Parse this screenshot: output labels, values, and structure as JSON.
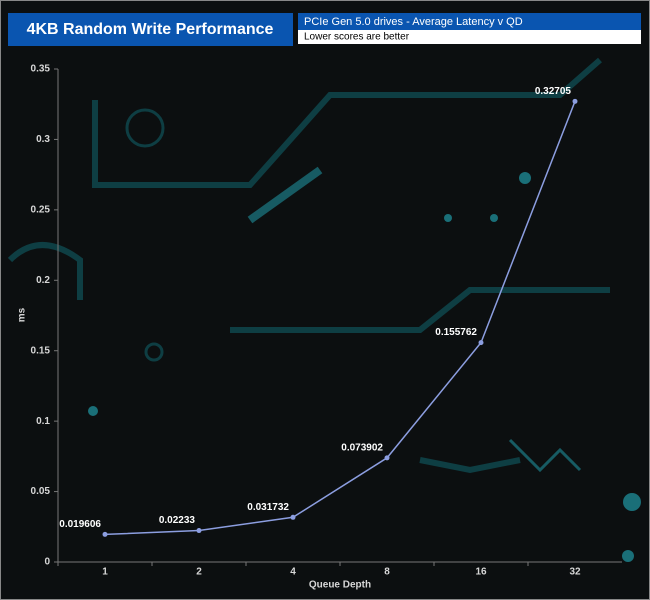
{
  "chart_data": {
    "type": "line",
    "title": "4KB Random Write Performance",
    "subtitle": "PCIe Gen 5.0 drives -  Average Latency v QD",
    "note": "Lower scores are better",
    "x_label": "Queue Depth",
    "y_label": "ms",
    "categories": [
      "1",
      "2",
      "4",
      "8",
      "16",
      "32"
    ],
    "series": [
      {
        "name": "Average Latency",
        "color": "#8c9ee0",
        "values": [
          0.019606,
          0.02233,
          0.031732,
          0.073902,
          0.155762,
          0.32705
        ]
      }
    ],
    "ylim": [
      0,
      0.35
    ],
    "yticks": [
      0,
      0.05,
      0.1,
      0.15,
      0.2,
      0.25,
      0.3,
      0.35
    ]
  }
}
